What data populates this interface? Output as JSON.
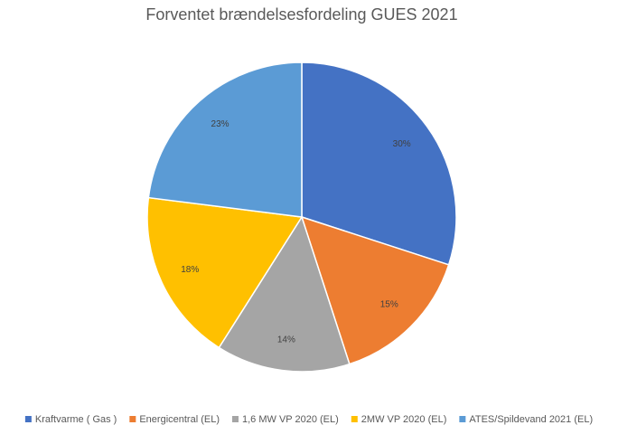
{
  "chart_data": {
    "type": "pie",
    "title": "Forventet brændelsesfordeling GUES 2021",
    "categories": [
      "Kraftvarme ( Gas )",
      "Energicentral (EL)",
      "1,6 MW VP 2020 (EL)",
      "2MW VP 2020 (EL)",
      "ATES/Spildevand 2021 (EL)"
    ],
    "values": [
      30,
      15,
      14,
      18,
      23
    ],
    "value_labels": [
      "30%",
      "15%",
      "14%",
      "18%",
      "23%"
    ],
    "colors": [
      "#4472c4",
      "#ed7d31",
      "#a5a5a5",
      "#ffc000",
      "#5b9bd5"
    ],
    "legend": "bottom"
  }
}
